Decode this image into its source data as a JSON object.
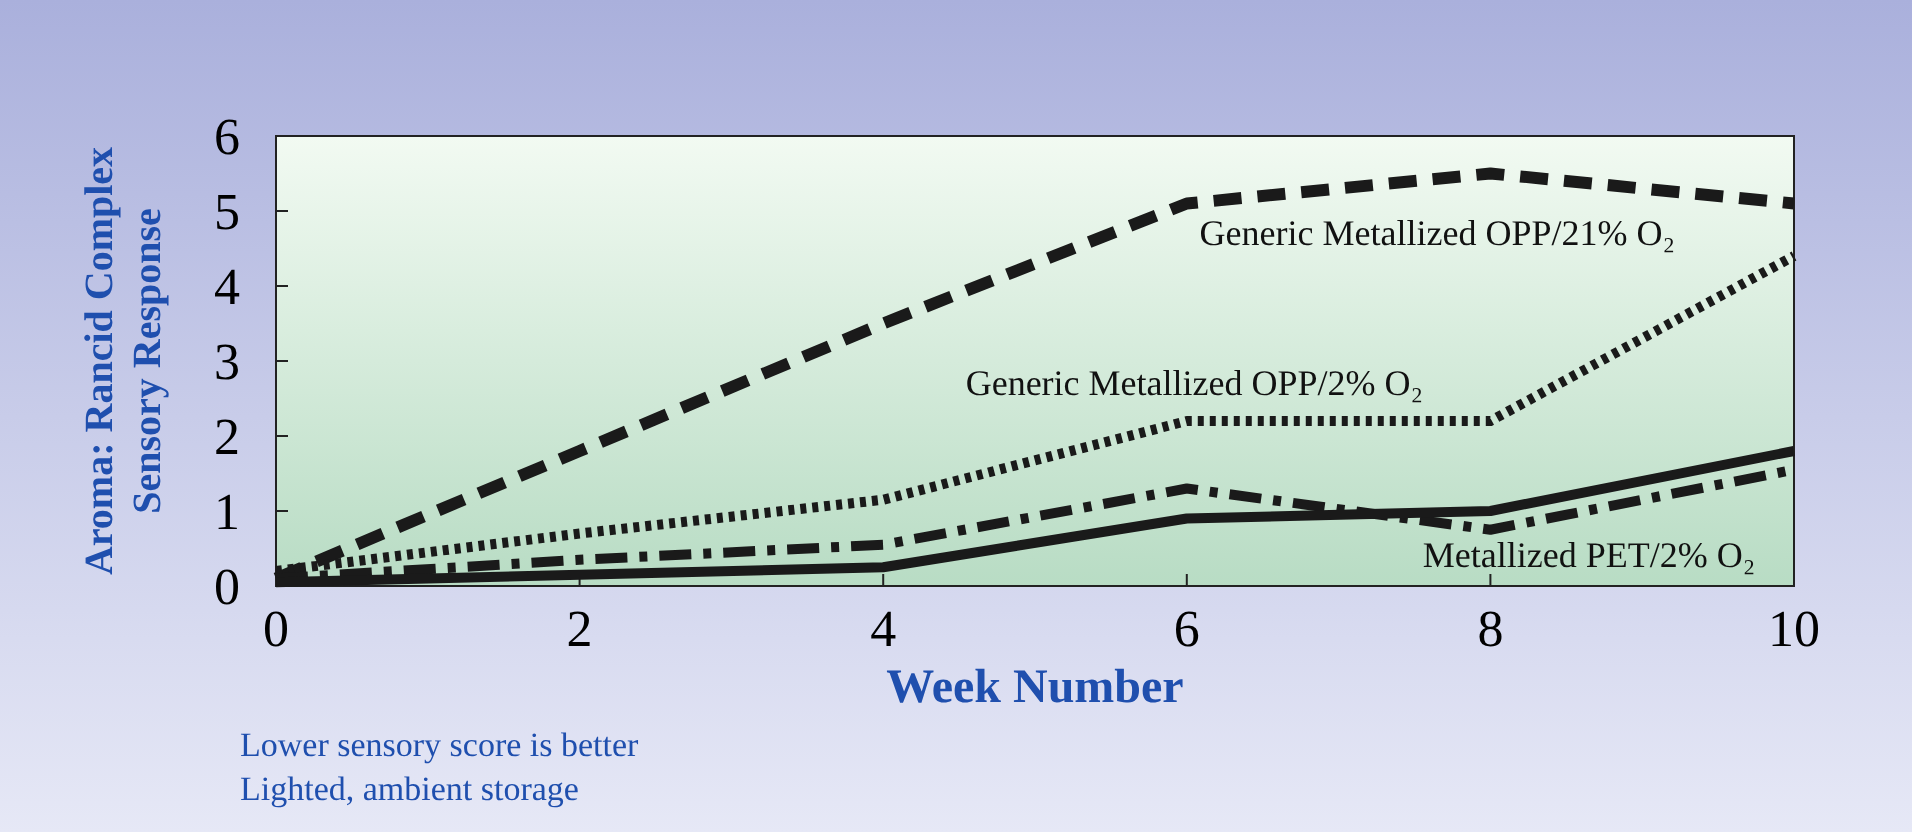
{
  "chart_data": {
    "type": "line",
    "xlabel": "Week Number",
    "ylabel": "Aroma: Rancid Complex\nSensory Response",
    "x": [
      0,
      2,
      4,
      6,
      8,
      10
    ],
    "xlim": [
      0,
      10
    ],
    "xticks": [
      0,
      2,
      4,
      6,
      8,
      10
    ],
    "ylim": [
      0,
      6
    ],
    "yticks": [
      0,
      1,
      2,
      3,
      4,
      5,
      6
    ],
    "grid": false,
    "series": [
      {
        "name": "Generic Metallized OPP/21% O₂",
        "color": "#1a1a1a",
        "line_style": "dashed",
        "values": [
          0.1,
          1.8,
          3.5,
          5.1,
          5.5,
          5.1
        ]
      },
      {
        "name": "Generic Metallized OPP/2% O₂",
        "color": "#1a1a1a",
        "line_style": "dotted",
        "values": [
          0.2,
          0.7,
          1.15,
          2.2,
          2.2,
          4.4
        ]
      },
      {
        "name": "Metallized PET/2% O₂",
        "color": "#1a1a1a",
        "line_style": "dashdot",
        "values": [
          0.1,
          0.35,
          0.55,
          1.3,
          0.75,
          1.55
        ]
      },
      {
        "color": "#1a1a1a",
        "line_style": "solid",
        "values": [
          0.05,
          0.15,
          0.25,
          0.9,
          1.0,
          1.8
        ]
      }
    ],
    "annotations": [
      "Lower sensory score is better",
      "Lighted, ambient storage"
    ]
  }
}
